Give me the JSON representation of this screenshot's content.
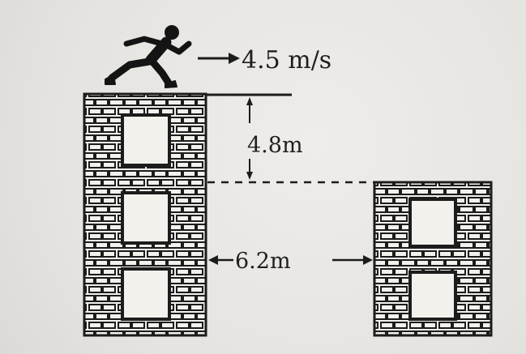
{
  "labels": {
    "speed": "4.5 m/s",
    "height": "4.8m",
    "gap": "6.2m"
  }
}
